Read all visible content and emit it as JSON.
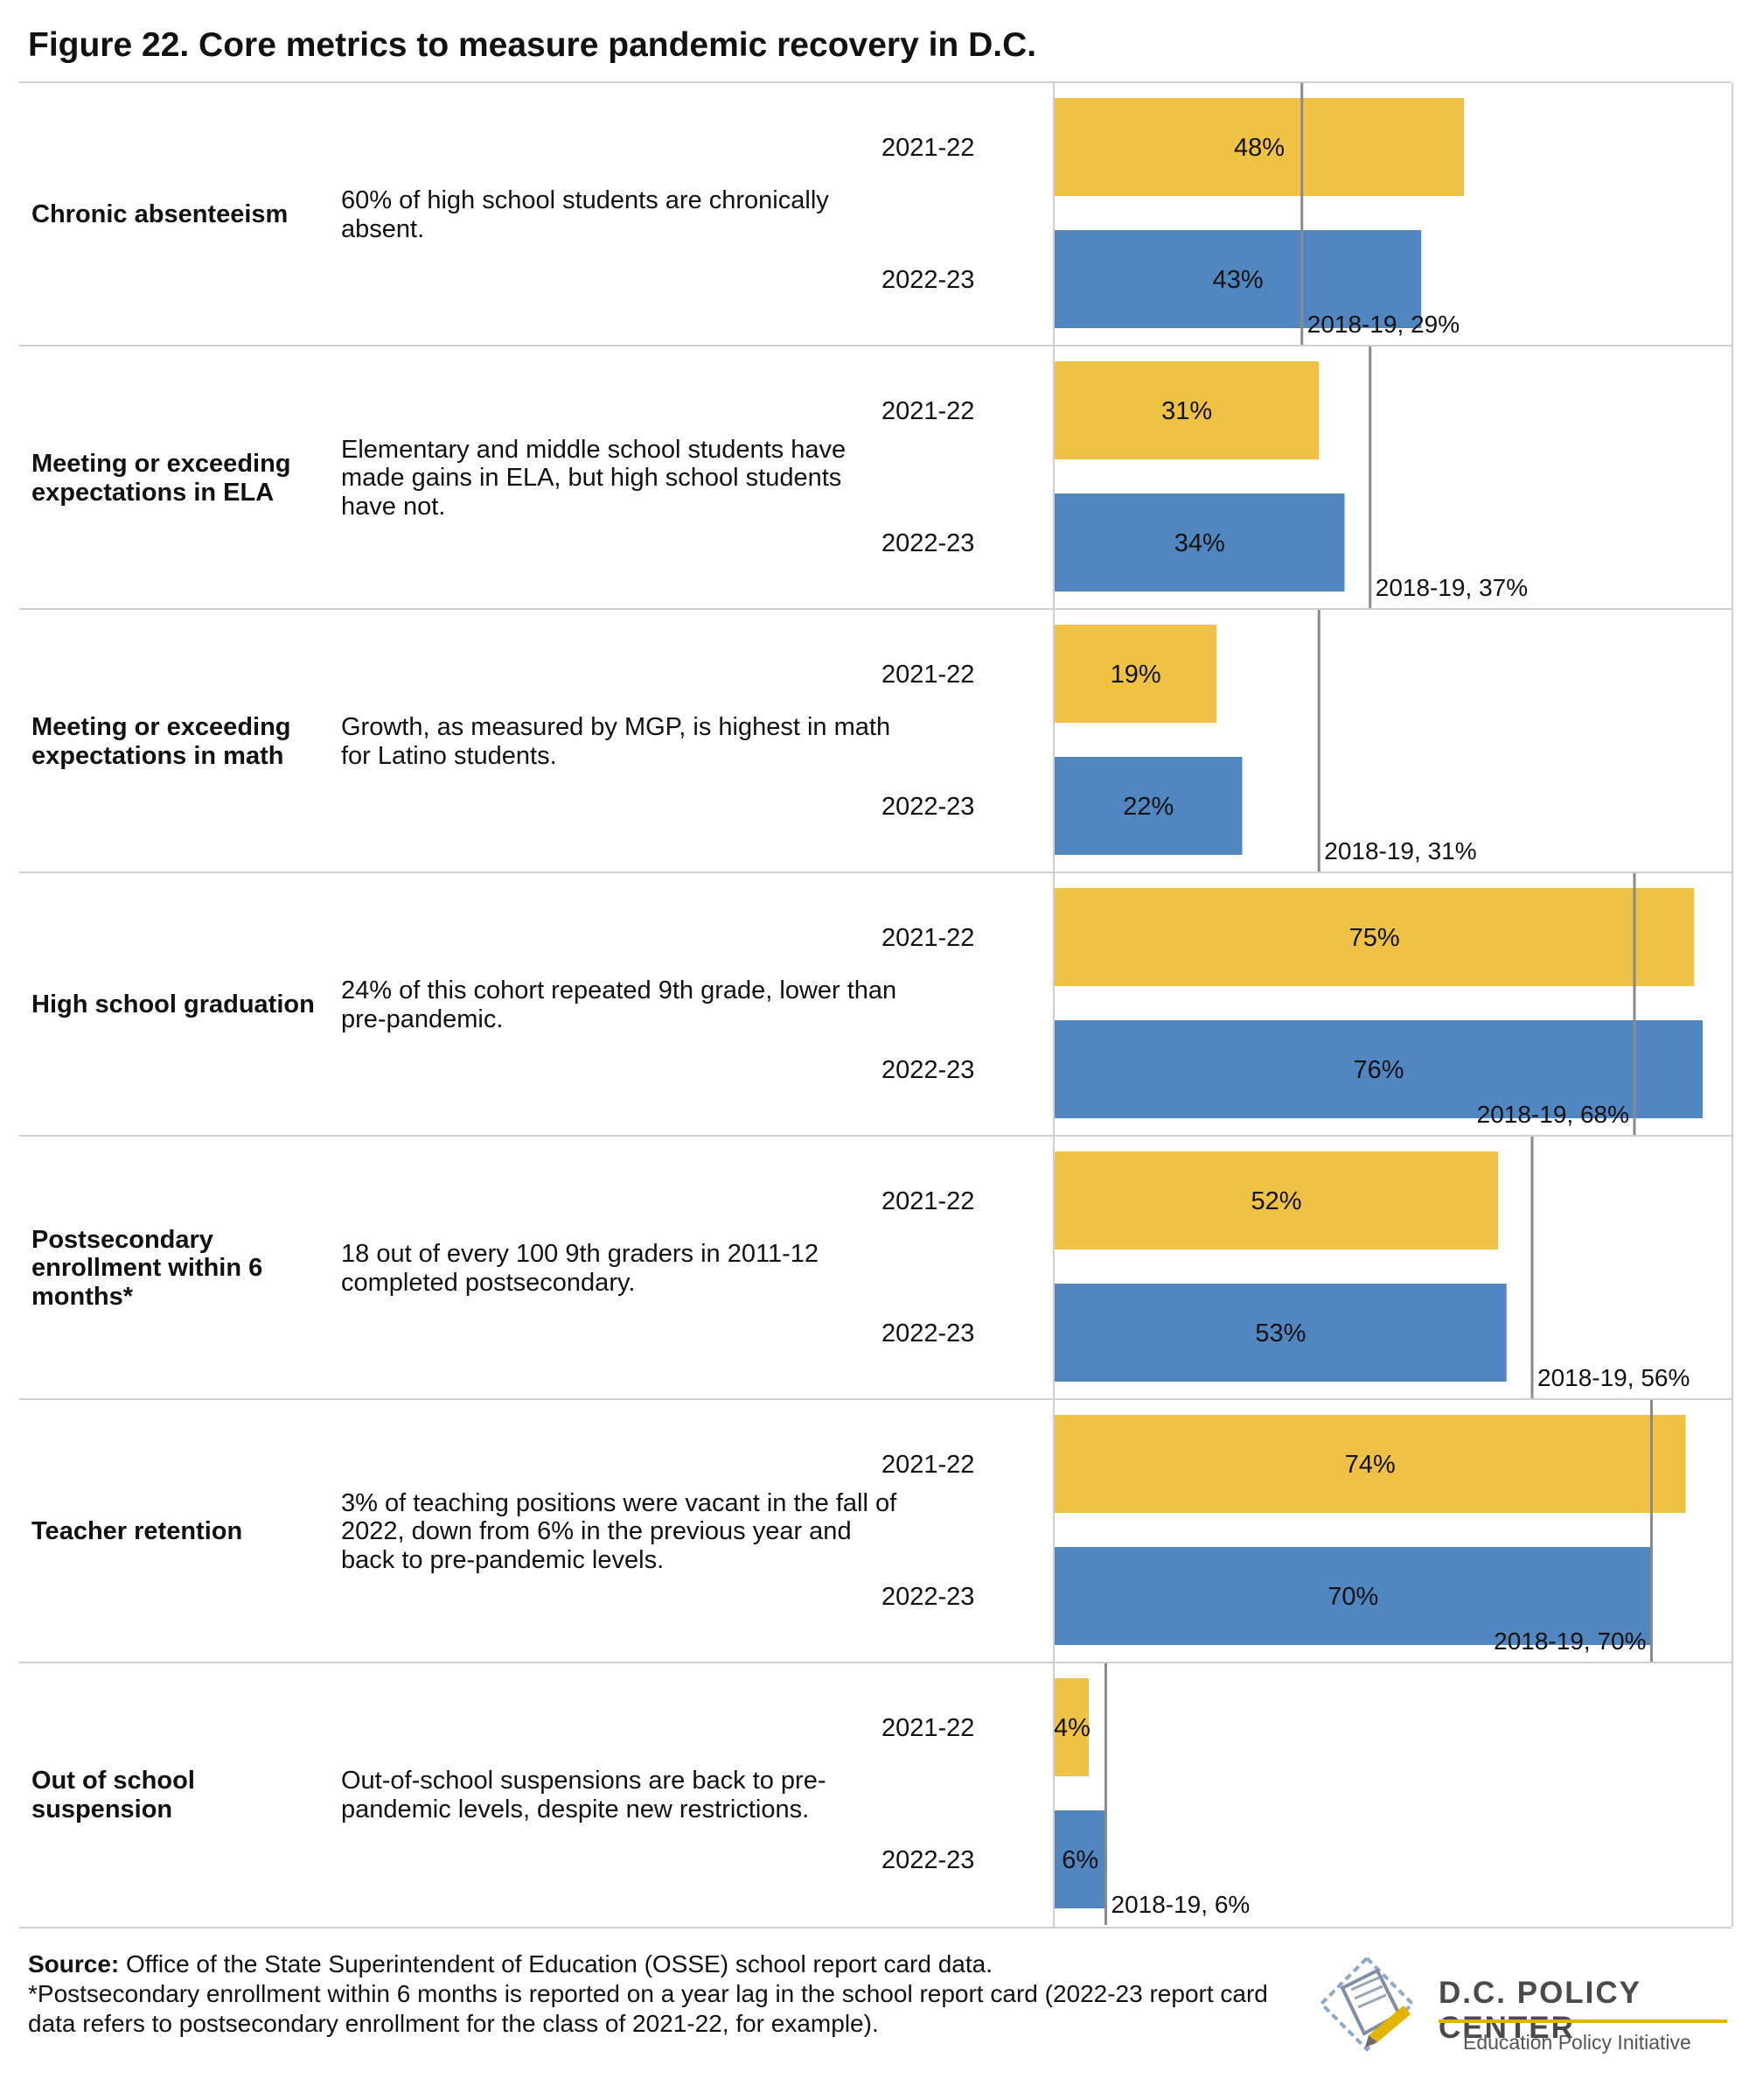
{
  "title": "Figure 22. Core metrics to measure pandemic recovery in D.C.",
  "colors": {
    "year1": "#EFC246",
    "year2": "#5187C1",
    "baseline": "#8a8a8a",
    "grid": "#cfcfcf"
  },
  "chart_data": {
    "type": "bar",
    "orientation": "horizontal",
    "value_unit": "%",
    "xlim": [
      0,
      76
    ],
    "series_names": [
      "2021-22",
      "2022-23"
    ],
    "rows": [
      {
        "metric": "Chronic absenteeism",
        "note": "60% of high school students are chronically absent.",
        "values": [
          48,
          43
        ],
        "labels": [
          "48%",
          "43%"
        ],
        "baseline_value": 29,
        "baseline_label": "2018-19, 29%"
      },
      {
        "metric": "Meeting or exceeding expectations in ELA",
        "note": "Elementary and middle school students have made gains in ELA, but high school students have not.",
        "values": [
          31,
          34
        ],
        "labels": [
          "31%",
          "34%"
        ],
        "baseline_value": 37,
        "baseline_label": "2018-19, 37%"
      },
      {
        "metric": "Meeting or exceeding expectations in math",
        "note": "Growth, as measured by MGP, is highest in math for Latino students.",
        "values": [
          19,
          22
        ],
        "labels": [
          "19%",
          "22%"
        ],
        "baseline_value": 31,
        "baseline_label": "2018-19, 31%"
      },
      {
        "metric": "High school graduation",
        "note": "24% of this cohort repeated 9th grade, lower than pre-pandemic.",
        "values": [
          75,
          76
        ],
        "labels": [
          "75%",
          "76%"
        ],
        "baseline_value": 68,
        "baseline_label": "2018-19, 68%"
      },
      {
        "metric": "Postsecondary enrollment within 6 months*",
        "note": "18 out of every 100 9th graders in 2011-12 completed postsecondary.",
        "values": [
          52,
          53
        ],
        "labels": [
          "52%",
          "53%"
        ],
        "baseline_value": 56,
        "baseline_label": "2018-19, 56%"
      },
      {
        "metric": "Teacher retention",
        "note": "3% of teaching positions were vacant in the fall of 2022, down from 6% in the previous year and back to pre-pandemic levels.",
        "values": [
          74,
          70
        ],
        "labels": [
          "74%",
          "70%"
        ],
        "baseline_value": 70,
        "baseline_label": "2018-19, 70%"
      },
      {
        "metric": "Out of school suspension",
        "note": "Out-of-school suspensions are back to pre-pandemic levels, despite new restrictions.",
        "values": [
          4,
          6
        ],
        "labels": [
          "4%",
          "6%"
        ],
        "baseline_value": 6,
        "baseline_label": "2018-19, 6%"
      }
    ]
  },
  "source": {
    "label": "Source:",
    "text": " Office of the State Superintendent of Education (OSSE) school report card data.",
    "footnote": "*Postsecondary enrollment within 6 months is reported on a year lag in the school report card (2022-23 report card data refers to postsecondary enrollment for the class of 2021-22, for example)."
  },
  "logo": {
    "name": "D.C. POLICY CENTER",
    "subtitle": "Education Policy Initiative",
    "icon": "dc-map-pen-icon"
  }
}
